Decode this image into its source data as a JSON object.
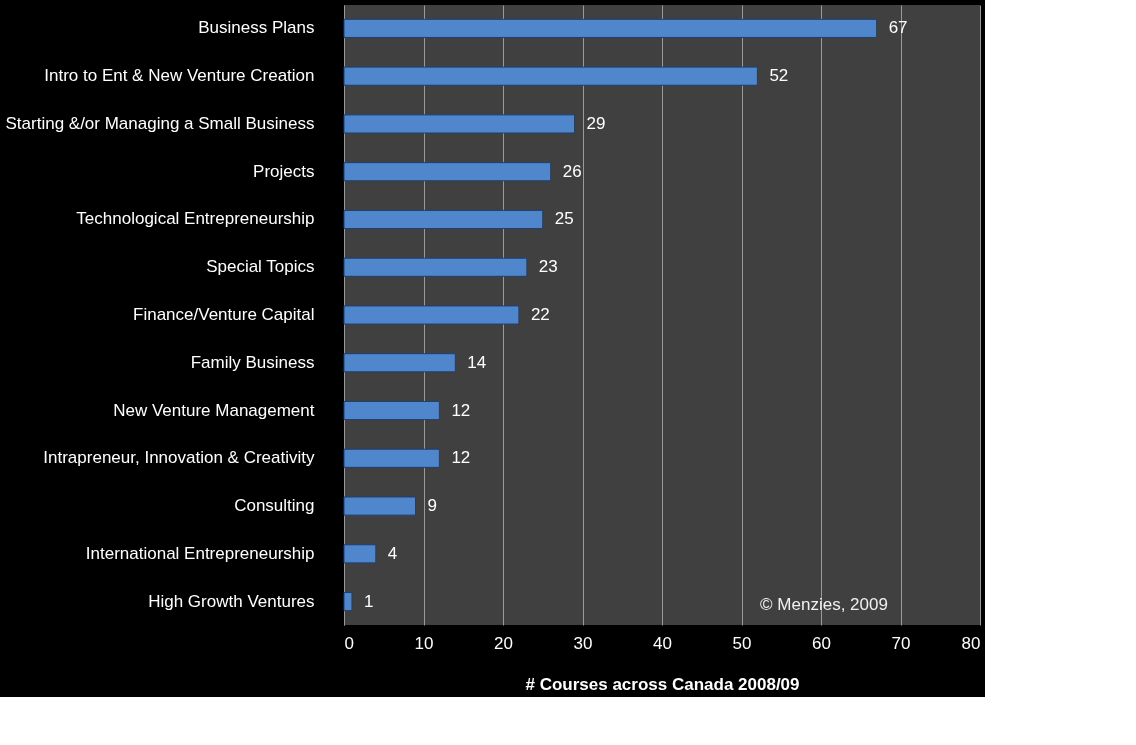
{
  "chart_data": {
    "type": "bar",
    "orientation": "horizontal",
    "xlabel": "# Courses across Canada 2008/09",
    "categories": [
      "Business Plans",
      "Intro to Ent & New Venture Creation",
      "Starting &/or Managing a Small Business",
      "Projects",
      "Technological Entrepreneurship",
      "Special Topics",
      "Finance/Venture Capital",
      "Family Business",
      "New Venture Management",
      "Intrapreneur, Innovation  &  Creativity",
      "Consulting",
      "International Entrepreneurship",
      "High Growth Ventures"
    ],
    "values": [
      67,
      52,
      29,
      26,
      25,
      23,
      22,
      14,
      12,
      12,
      9,
      4,
      1
    ],
    "color": "#4f86cc",
    "xlim": [
      0,
      80
    ],
    "xticks": [
      0,
      10,
      20,
      30,
      40,
      50,
      60,
      70,
      80
    ],
    "grid": "x",
    "data_labels": true,
    "annotations": [
      "© Menzies, 2009"
    ]
  }
}
